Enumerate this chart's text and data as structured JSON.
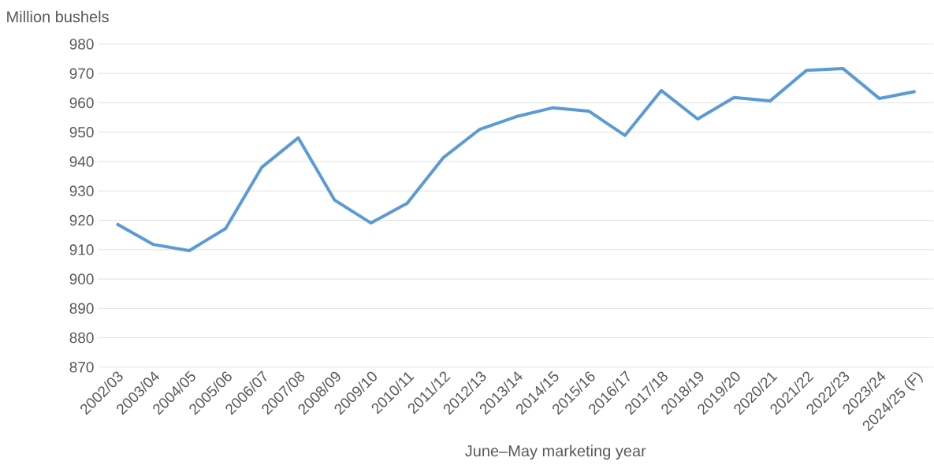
{
  "chart_data": {
    "type": "line",
    "ylabel": "Million bushels",
    "xlabel": "June–May marketing year",
    "categories": [
      "2002/03",
      "2003/04",
      "2004/05",
      "2005/06",
      "2006/07",
      "2007/08",
      "2008/09",
      "2009/10",
      "2010/11",
      "2011/12",
      "2012/13",
      "2013/14",
      "2014/15",
      "2015/16",
      "2016/17",
      "2017/18",
      "2018/19",
      "2019/20",
      "2020/21",
      "2021/22",
      "2022/23",
      "2023/24",
      "2024/25 (F)"
    ],
    "series": [
      {
        "color": "#5b9bd5",
        "values": [
          918.8,
          911.8,
          909.7,
          917.2,
          938.1,
          948.1,
          926.9,
          919.1,
          925.8,
          941.4,
          951.0,
          955.3,
          958.3,
          957.2,
          948.9,
          964.2,
          954.5,
          961.8,
          960.7,
          971.1,
          971.7,
          961.5,
          963.9
        ]
      }
    ],
    "ylim": [
      870,
      980
    ],
    "yticks": [
      870,
      880,
      890,
      900,
      910,
      920,
      930,
      940,
      950,
      960,
      970,
      980
    ],
    "grid": "y",
    "marker": "none",
    "line_style": "solid"
  }
}
